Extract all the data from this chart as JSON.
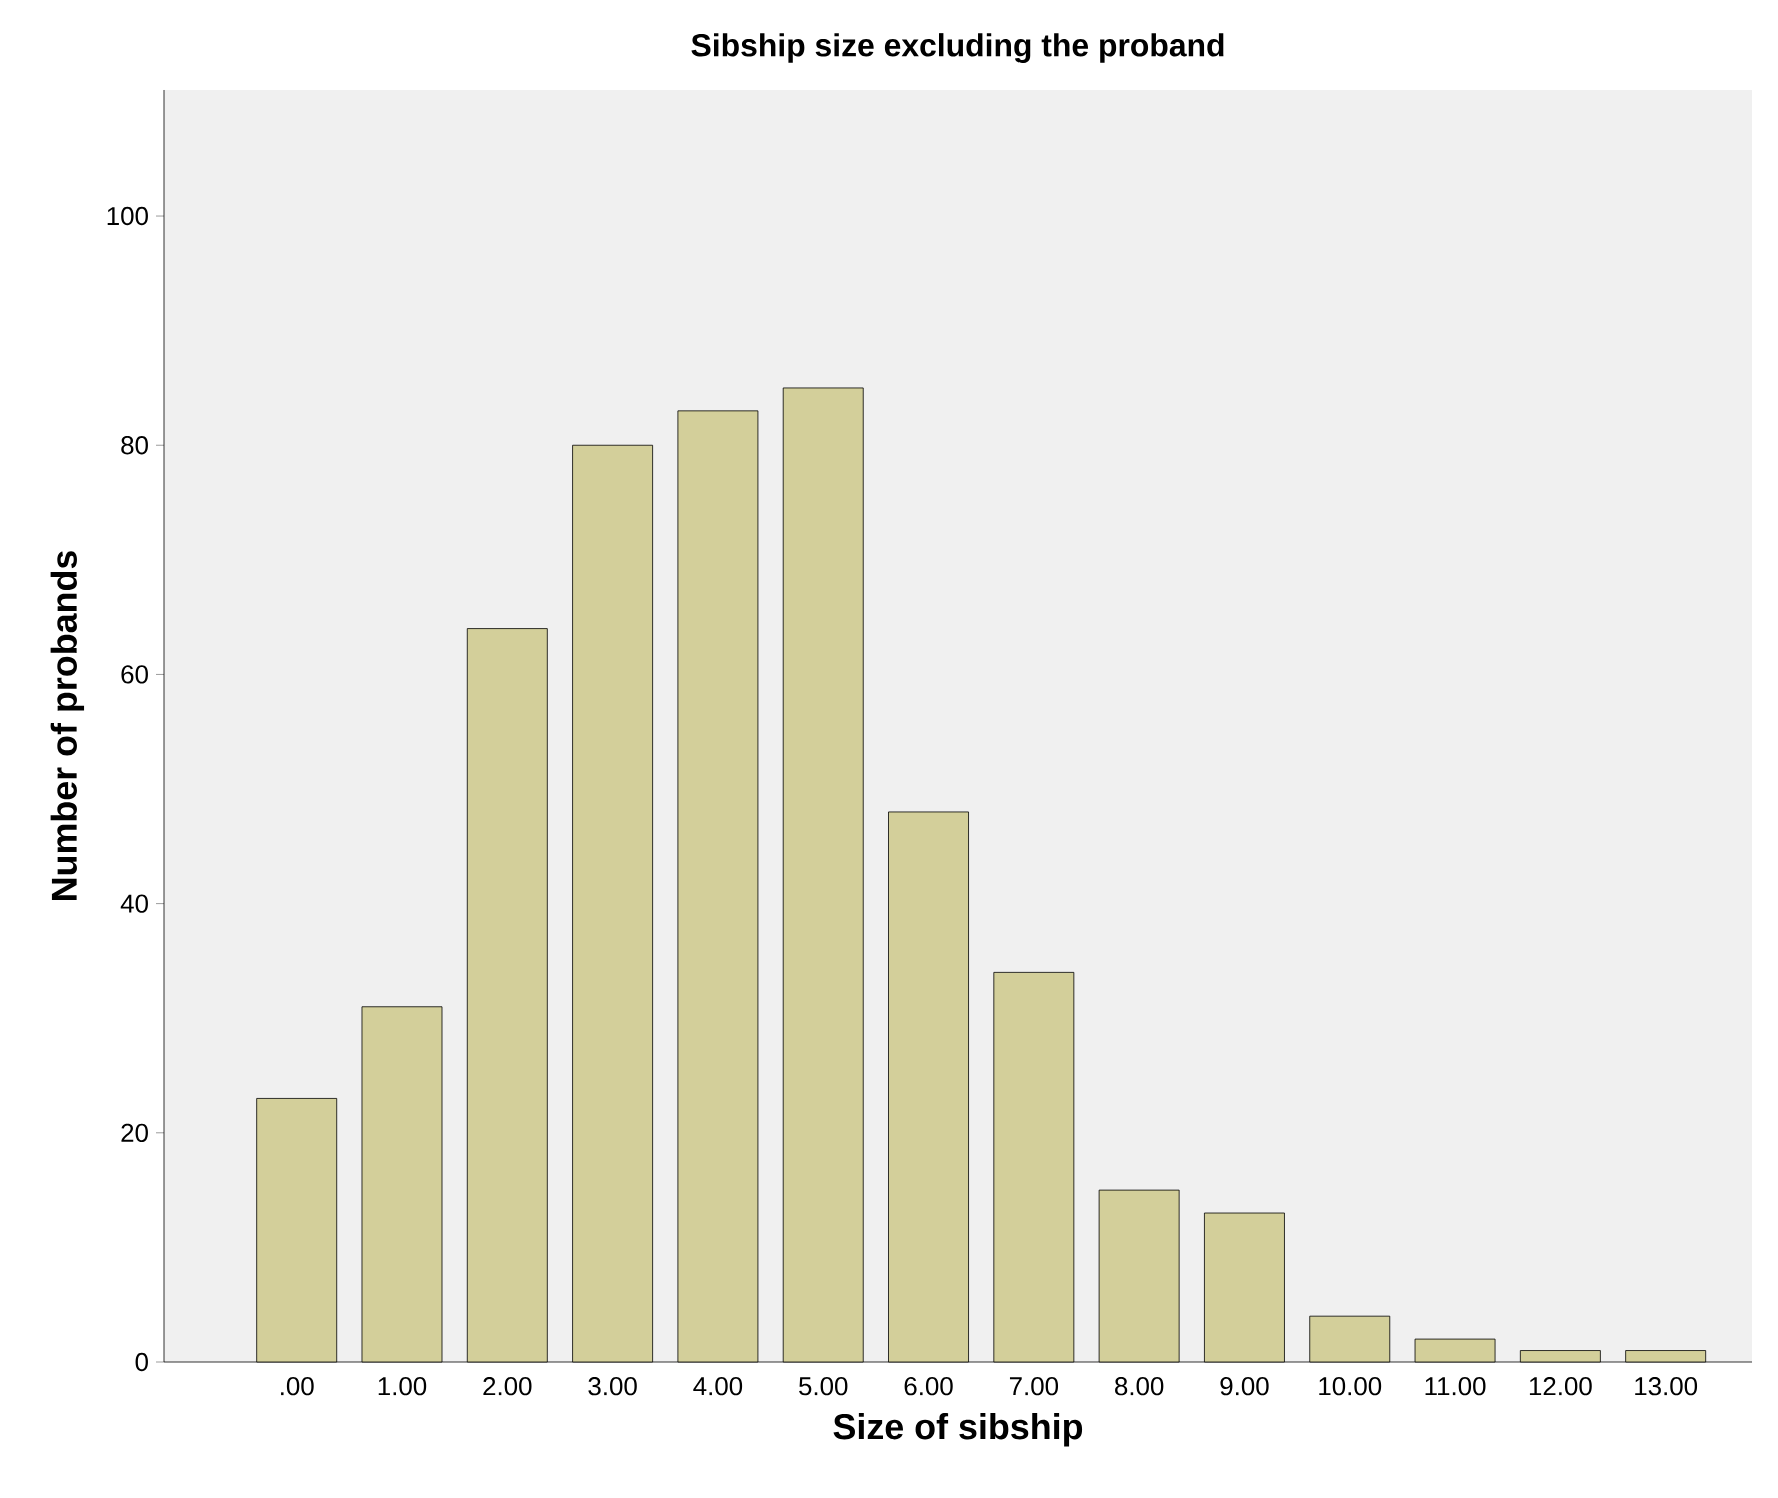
{
  "chart_data": {
    "type": "bar",
    "title": "Sibship size excluding the proband",
    "xlabel": "Size of sibship",
    "ylabel": "Number of probands",
    "categories": [
      ".00",
      "1.00",
      "2.00",
      "3.00",
      "4.00",
      "5.00",
      "6.00",
      "7.00",
      "8.00",
      "9.00",
      "10.00",
      "11.00",
      "12.00",
      "13.00"
    ],
    "values": [
      23,
      31,
      64,
      80,
      83,
      85,
      48,
      34,
      15,
      13,
      4,
      2,
      1,
      1
    ],
    "color": "#d3cf9a",
    "ylim": [
      0,
      111
    ],
    "yticks": [
      0,
      20,
      40,
      60,
      80,
      100
    ]
  }
}
